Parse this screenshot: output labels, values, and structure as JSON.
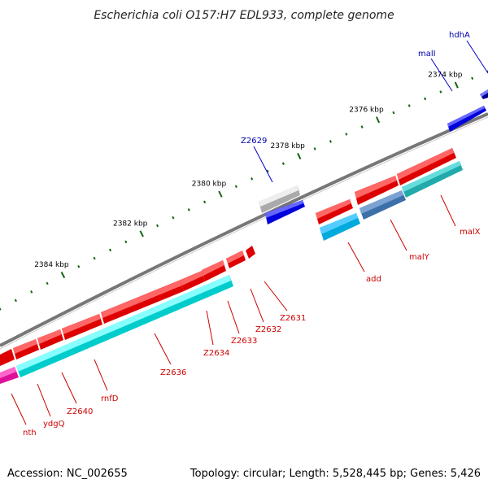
{
  "title": "Escherichia coli O157:H7 EDL933, complete genome",
  "footer": {
    "accession": "Accession: NC_002655",
    "summary": "Topology: circular; Length: 5,528,445 bp; Genes: 5,426"
  },
  "colors": {
    "backbone": "#777777",
    "forward_gene": "#ee0000",
    "reverse_gene": "#11dddd",
    "blue_gene": "#0000dd",
    "grey_gene": "#bbbbbb",
    "slate_gene": "#3d78b8",
    "teal_gene": "#22bbbb",
    "magenta_gene": "#ee22aa",
    "tick": "#116611",
    "label_red": "#cc0000",
    "label_blue": "#0000aa"
  },
  "axis_ticks": [
    {
      "label": "2374 kbp",
      "kbp": 2374
    },
    {
      "label": "2376 kbp",
      "kbp": 2376
    },
    {
      "label": "2378 kbp",
      "kbp": 2378
    },
    {
      "label": "2380 kbp",
      "kbp": 2380
    },
    {
      "label": "2382 kbp",
      "kbp": 2382
    },
    {
      "label": "2384 kbp",
      "kbp": 2384
    }
  ],
  "genes_top": [
    {
      "name": "hdhA",
      "strand": "outer",
      "color": "blue"
    },
    {
      "name": "malI",
      "strand": "outer",
      "color": "blue"
    },
    {
      "name": "Z2629",
      "strand": "outer",
      "color": "grey"
    }
  ],
  "genes_bottom": [
    {
      "name": "malX"
    },
    {
      "name": "malY"
    },
    {
      "name": "add"
    },
    {
      "name": "Z2631"
    },
    {
      "name": "Z2632"
    },
    {
      "name": "Z2633"
    },
    {
      "name": "Z2634"
    },
    {
      "name": "Z2636"
    },
    {
      "name": "rnfD"
    },
    {
      "name": "Z2640"
    },
    {
      "name": "ydgQ"
    },
    {
      "name": "nth"
    }
  ]
}
